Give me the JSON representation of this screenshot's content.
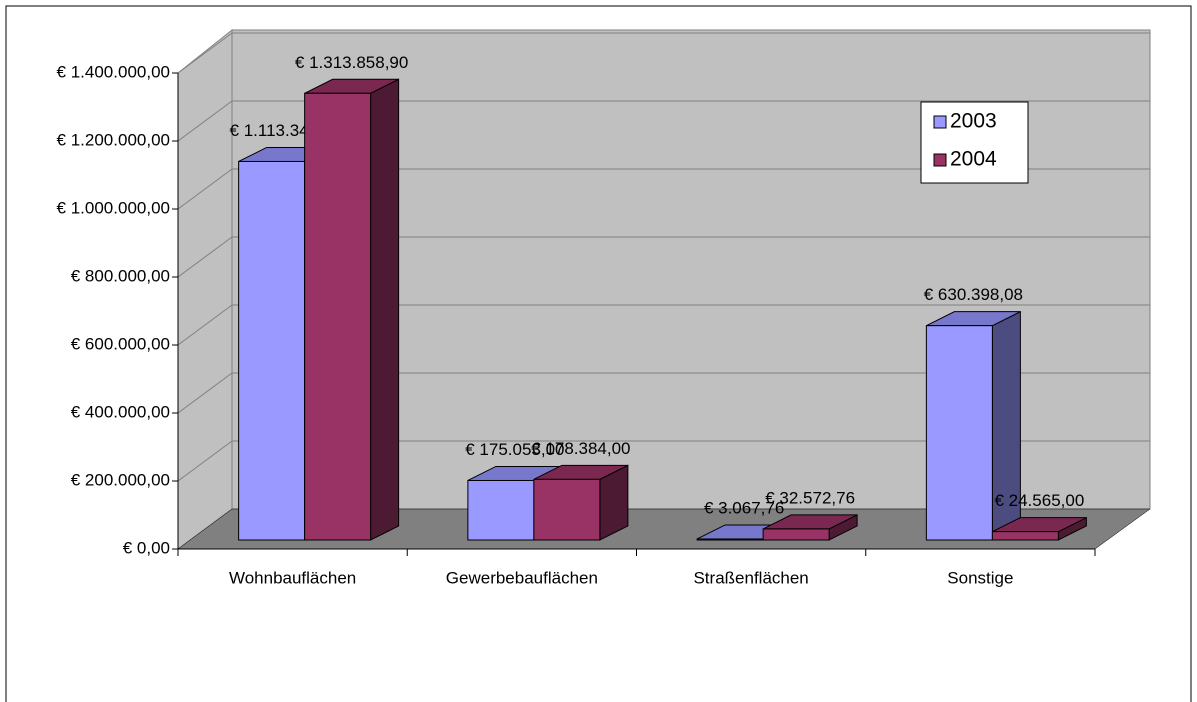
{
  "chart_data": {
    "type": "bar3d",
    "categories": [
      "Wohnbauflächen",
      "Gewerbebauflächen",
      "Straßenflächen",
      "Sonstige"
    ],
    "series": [
      {
        "name": "2003",
        "color": "#9999ff",
        "top_color": "#7777cc",
        "side_color": "#4c4c80",
        "values": [
          1113348.93,
          175053.0,
          3067.76,
          630398.08
        ],
        "value_labels": [
          "€ 1.113.348,93",
          "€ 175.053,00",
          "€ 3.067,76",
          "€ 630.398,08"
        ]
      },
      {
        "name": "2004",
        "color": "#993366",
        "top_color": "#7a2850",
        "side_color": "#4d1a33",
        "values": [
          1313858.9,
          178384.0,
          32572.76,
          24565.0
        ],
        "value_labels": [
          "€ 1.313.858,90",
          "€ 178.384,00",
          "€ 32.572,76",
          "€ 24.565,00"
        ]
      }
    ],
    "ylim": [
      0,
      1400000
    ],
    "yticks": [
      {
        "value": 0,
        "label": "€ 0,00"
      },
      {
        "value": 200000,
        "label": "€ 200.000,00"
      },
      {
        "value": 400000,
        "label": "€ 400.000,00"
      },
      {
        "value": 600000,
        "label": "€ 600.000,00"
      },
      {
        "value": 800000,
        "label": "€ 800.000,00"
      },
      {
        "value": 1000000,
        "label": "€ 1.000.000,00"
      },
      {
        "value": 1200000,
        "label": "€ 1.200.000,00"
      },
      {
        "value": 1400000,
        "label": "€ 1.400.000,00"
      }
    ],
    "grid": true,
    "legend": "top-right"
  }
}
